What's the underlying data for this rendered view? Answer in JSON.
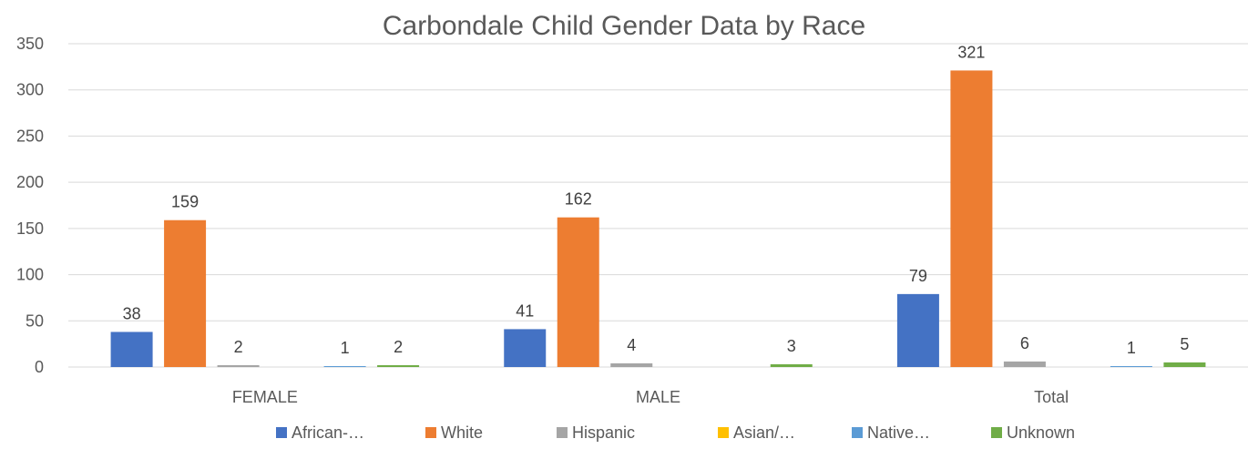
{
  "chart_data": {
    "type": "bar",
    "title": "Carbondale Child Gender Data by Race",
    "xlabel": "",
    "ylabel": "",
    "ylim": [
      0,
      350
    ],
    "yticks": [
      0,
      50,
      100,
      150,
      200,
      250,
      300,
      350
    ],
    "grid": true,
    "legend_position": "bottom",
    "categories": [
      "FEMALE",
      "MALE",
      "Total"
    ],
    "series": [
      {
        "name": "African-…",
        "color": "#4472C4",
        "values": [
          38,
          41,
          79
        ],
        "labels": [
          "38",
          "41",
          "79"
        ]
      },
      {
        "name": "White",
        "color": "#ED7D31",
        "values": [
          159,
          162,
          321
        ],
        "labels": [
          "159",
          "162",
          "321"
        ]
      },
      {
        "name": "Hispanic",
        "color": "#A5A5A5",
        "values": [
          2,
          4,
          6
        ],
        "labels": [
          "2",
          "4",
          "6"
        ]
      },
      {
        "name": "Asian/…",
        "color": "#FFC000",
        "values": [
          0,
          0,
          0
        ],
        "labels": [
          "",
          "",
          ""
        ]
      },
      {
        "name": "Native…",
        "color": "#5B9BD5",
        "values": [
          1,
          0,
          1
        ],
        "labels": [
          "1",
          "",
          "1"
        ]
      },
      {
        "name": "Unknown",
        "color": "#70AD47",
        "values": [
          2,
          3,
          5
        ],
        "labels": [
          "2",
          "3",
          "5"
        ]
      }
    ]
  }
}
